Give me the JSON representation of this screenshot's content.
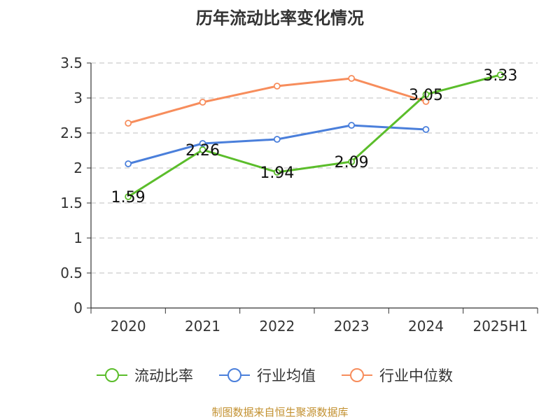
{
  "page": {
    "title": "历年流动比率变化情况",
    "source": "制图数据来自恒生聚源数据库"
  },
  "colors": {
    "current_ratio": "#5bbd2b",
    "industry_avg": "#4a7fdb",
    "industry_median": "#f78d5c",
    "axis": "#333333",
    "grid": "#cccccc",
    "source_text": "#c2902f"
  },
  "chart_data": {
    "type": "line",
    "title": "历年流动比率变化情况",
    "xlabel": "",
    "ylabel": "",
    "ylim": [
      0,
      3.5
    ],
    "yticks": [
      "0",
      "0.5",
      "1",
      "1.5",
      "2",
      "2.5",
      "3",
      "3.5"
    ],
    "categories": [
      "2020",
      "2021",
      "2022",
      "2023",
      "2024",
      "2025H1"
    ],
    "grid": true,
    "legend_position": "bottom",
    "series": [
      {
        "name": "流动比率",
        "key": "current_ratio",
        "values": [
          1.59,
          2.26,
          1.94,
          2.09,
          3.05,
          3.33
        ],
        "labels": [
          "1.59",
          "2.26",
          "1.94",
          "2.09",
          "3.05",
          "3.33"
        ]
      },
      {
        "name": "行业均值",
        "key": "industry_avg",
        "values": [
          2.06,
          2.35,
          2.41,
          2.61,
          2.55,
          null
        ]
      },
      {
        "name": "行业中位数",
        "key": "industry_median",
        "values": [
          2.64,
          2.94,
          3.17,
          3.28,
          2.95,
          null
        ]
      }
    ]
  }
}
